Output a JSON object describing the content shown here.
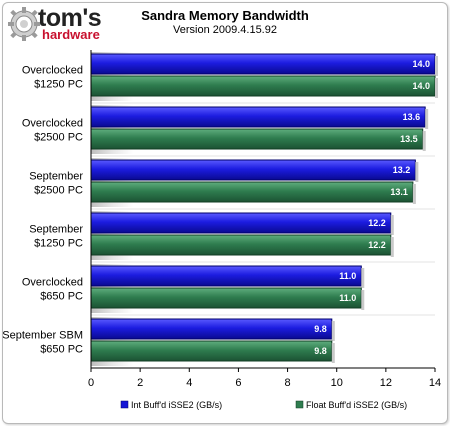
{
  "brand": {
    "name": "tom's",
    "sub": "hardware"
  },
  "chart_data": {
    "type": "bar",
    "orientation": "horizontal",
    "title": "Sandra Memory Bandwidth",
    "subtitle": "Version 2009.4.15.92",
    "categories": [
      [
        "Overclocked",
        "$1250 PC"
      ],
      [
        "Overclocked",
        "$2500 PC"
      ],
      [
        "September",
        "$2500 PC"
      ],
      [
        "September",
        "$1250 PC"
      ],
      [
        "Overclocked",
        "$650 PC"
      ],
      [
        "September SBM",
        "$650 PC"
      ]
    ],
    "series": [
      {
        "name": "Int Buff'd iSSE2 (GB/s)",
        "color": "#1515d6",
        "values": [
          14.0,
          13.6,
          13.2,
          12.2,
          11.0,
          9.8
        ]
      },
      {
        "name": "Float Buff'd iSSE2 (GB/s)",
        "color": "#2f7d4f",
        "values": [
          14.0,
          13.5,
          13.1,
          12.2,
          11.0,
          9.8
        ]
      }
    ],
    "xlim": [
      0,
      14
    ],
    "xticks": [
      "0",
      "2",
      "4",
      "6",
      "8",
      "10",
      "12",
      "14"
    ],
    "legend_position": "bottom",
    "grid": false
  }
}
